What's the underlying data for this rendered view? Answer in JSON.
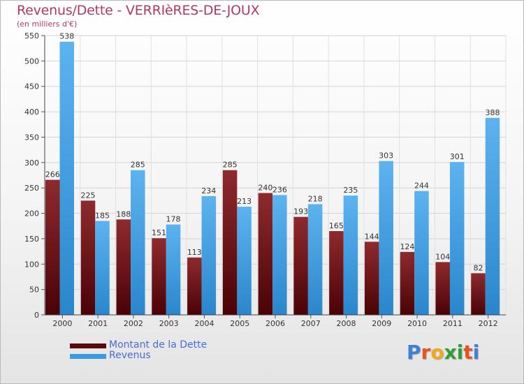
{
  "chart_data": {
    "type": "bar",
    "title": "Revenus/Dette - VERRIèRES-DE-JOUX",
    "subtitle": "(en milliers d'€)",
    "categories": [
      "2000",
      "2001",
      "2002",
      "2003",
      "2004",
      "2005",
      "2006",
      "2007",
      "2008",
      "2009",
      "2010",
      "2011",
      "2012"
    ],
    "series": [
      {
        "name": "Montant de la Dette",
        "color": "#7a1a1e",
        "values": [
          266,
          225,
          188,
          151,
          113,
          285,
          240,
          193,
          165,
          144,
          124,
          104,
          82
        ]
      },
      {
        "name": "Revenus",
        "color": "#4aa3e0",
        "values": [
          538,
          185,
          285,
          178,
          234,
          213,
          236,
          218,
          235,
          303,
          244,
          301,
          388
        ]
      }
    ],
    "ylim": [
      0,
      550
    ],
    "yticks": [
      "0",
      "50",
      "100",
      "150",
      "200",
      "250",
      "300",
      "350",
      "400",
      "450",
      "500",
      "550"
    ],
    "grid": true,
    "legend": "bottom-left"
  },
  "legend": {
    "dette_label": "Montant de la Dette",
    "revenus_label": "Revenus",
    "dette_color": "#5a0a0e",
    "revenus_color": "#3d9ae0"
  },
  "logo": {
    "letters": [
      "P",
      "r",
      "o",
      "x",
      "i",
      "t",
      "i"
    ],
    "colors": [
      "#3f7fd6",
      "#e8531d",
      "#f2a81d",
      "#2f9e3a",
      "#2f9e3a",
      "#e8531d",
      "#3f7fd6"
    ]
  }
}
